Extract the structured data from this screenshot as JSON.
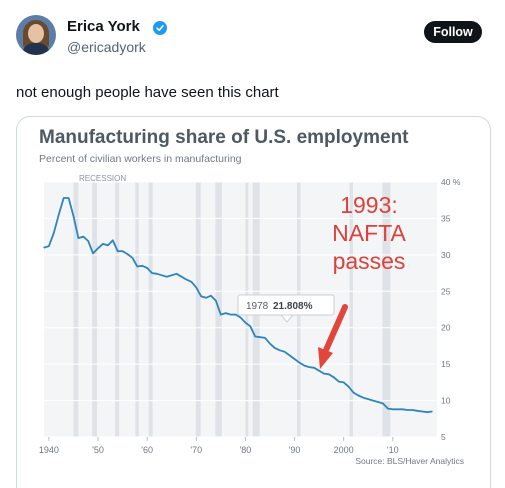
{
  "user": {
    "name": "Erica York",
    "handle": "@ericadyork",
    "follow_label": "Follow"
  },
  "tweet": {
    "text": "not enough people have seen this chart"
  },
  "chart_data": {
    "type": "line",
    "title": "Manufacturing share of U.S. employment",
    "subtitle": "Percent of civilian workers in manufacturing",
    "recession_label": "RECESSION",
    "annotation": [
      "1993:",
      "NAFTA",
      "passes"
    ],
    "tooltip": {
      "year": "1978",
      "value": "21.808%"
    },
    "source": "Source: BLS/Haver Analytics",
    "x_ticks": [
      {
        "v": 1940,
        "label": "1940"
      },
      {
        "v": 1950,
        "label": "'50"
      },
      {
        "v": 1960,
        "label": "'60"
      },
      {
        "v": 1970,
        "label": "'70"
      },
      {
        "v": 1980,
        "label": "'80"
      },
      {
        "v": 1990,
        "label": "'90"
      },
      {
        "v": 2000,
        "label": "2000"
      },
      {
        "v": 2010,
        "label": "'10"
      }
    ],
    "y_ticks": [
      {
        "v": 40,
        "label": "40 %"
      },
      {
        "v": 35,
        "label": "35"
      },
      {
        "v": 30,
        "label": "30"
      },
      {
        "v": 25,
        "label": "25"
      },
      {
        "v": 20,
        "label": "20"
      },
      {
        "v": 15,
        "label": "15"
      },
      {
        "v": 10,
        "label": "10"
      },
      {
        "v": 5,
        "label": "5"
      }
    ],
    "xlim": [
      1939,
      2019
    ],
    "ylim": [
      5,
      40
    ],
    "recessions": [
      [
        1945,
        1946
      ],
      [
        1948.8,
        1949.8
      ],
      [
        1953.5,
        1954.3
      ],
      [
        1957.6,
        1958.3
      ],
      [
        1960.3,
        1961.1
      ],
      [
        1969.9,
        1970.9
      ],
      [
        1973.9,
        1975.2
      ],
      [
        1980,
        1980.6
      ],
      [
        1981.5,
        1982.9
      ],
      [
        1990.5,
        1991.2
      ],
      [
        2001.2,
        2001.9
      ],
      [
        2007.9,
        2009.5
      ]
    ],
    "series": [
      {
        "values": [
          [
            1939,
            31
          ],
          [
            1940,
            31.2
          ],
          [
            1941,
            33
          ],
          [
            1942,
            35.5
          ],
          [
            1943,
            37.8
          ],
          [
            1944,
            37.8
          ],
          [
            1945,
            35.3
          ],
          [
            1946,
            32.3
          ],
          [
            1947,
            32.5
          ],
          [
            1948,
            31.9
          ],
          [
            1949,
            30.2
          ],
          [
            1950,
            30.9
          ],
          [
            1951,
            31.5
          ],
          [
            1952,
            31.3
          ],
          [
            1953,
            32
          ],
          [
            1954,
            30.5
          ],
          [
            1955,
            30.5
          ],
          [
            1956,
            30.1
          ],
          [
            1957,
            29.6
          ],
          [
            1958,
            28.4
          ],
          [
            1959,
            28.5
          ],
          [
            1960,
            28.2
          ],
          [
            1961,
            27.5
          ],
          [
            1962,
            27.4
          ],
          [
            1963,
            27.2
          ],
          [
            1964,
            27
          ],
          [
            1965,
            27.2
          ],
          [
            1966,
            27.4
          ],
          [
            1967,
            27
          ],
          [
            1968,
            26.6
          ],
          [
            1969,
            26.3
          ],
          [
            1970,
            25.5
          ],
          [
            1971,
            24.3
          ],
          [
            1972,
            24.1
          ],
          [
            1973,
            24.4
          ],
          [
            1974,
            23.7
          ],
          [
            1975,
            21.8
          ],
          [
            1976,
            22
          ],
          [
            1977,
            21.8
          ],
          [
            1978,
            21.808
          ],
          [
            1979,
            21.4
          ],
          [
            1980,
            20.7
          ],
          [
            1981,
            20.2
          ],
          [
            1982,
            18.8
          ],
          [
            1983,
            18.7
          ],
          [
            1984,
            18.6
          ],
          [
            1985,
            17.8
          ],
          [
            1986,
            17.2
          ],
          [
            1987,
            16.9
          ],
          [
            1988,
            16.7
          ],
          [
            1989,
            16.2
          ],
          [
            1990,
            15.7
          ],
          [
            1991,
            15.2
          ],
          [
            1992,
            14.8
          ],
          [
            1993,
            14.6
          ],
          [
            1994,
            14.5
          ],
          [
            1995,
            14.1
          ],
          [
            1996,
            13.7
          ],
          [
            1997,
            13.6
          ],
          [
            1998,
            13.2
          ],
          [
            1999,
            12.6
          ],
          [
            2000,
            12.5
          ],
          [
            2001,
            11.9
          ],
          [
            2002,
            11.1
          ],
          [
            2003,
            10.7
          ],
          [
            2004,
            10.4
          ],
          [
            2005,
            10.2
          ],
          [
            2006,
            10
          ],
          [
            2007,
            9.8
          ],
          [
            2008,
            9.6
          ],
          [
            2009,
            8.9
          ],
          [
            2010,
            8.8
          ],
          [
            2011,
            8.8
          ],
          [
            2012,
            8.8
          ],
          [
            2013,
            8.7
          ],
          [
            2014,
            8.7
          ],
          [
            2015,
            8.6
          ],
          [
            2016,
            8.5
          ],
          [
            2017,
            8.4
          ],
          [
            2018,
            8.5
          ]
        ]
      }
    ]
  }
}
